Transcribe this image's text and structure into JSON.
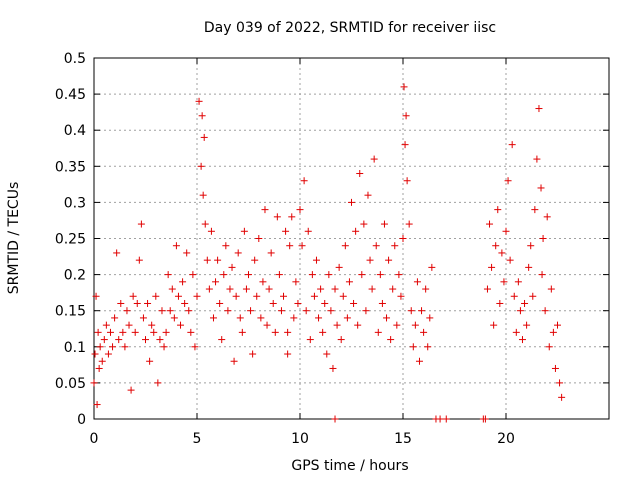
{
  "chart_data": {
    "type": "scatter",
    "title": "Day 039 of 2022, SRMTID for receiver iisc",
    "xlabel": "GPS time / hours",
    "ylabel": "SRMTID / TECUs",
    "xlim": [
      0,
      25
    ],
    "ylim": [
      0,
      0.5
    ],
    "x_ticks": [
      0,
      5,
      10,
      15,
      20
    ],
    "x_tick_labels": [
      "0",
      "5",
      "10",
      "15",
      "20"
    ],
    "y_ticks": [
      0,
      0.05,
      0.1,
      0.15,
      0.2,
      0.25,
      0.3,
      0.35,
      0.4,
      0.45,
      0.5
    ],
    "y_tick_labels": [
      "0",
      "0.05",
      "0.1",
      "0.15",
      "0.2",
      "0.25",
      "0.3",
      "0.35",
      "0.4",
      "0.45",
      "0.5"
    ],
    "grid": true,
    "marker": "+",
    "color": "#e00000",
    "series": [
      {
        "x": [
          0.0,
          0.05,
          0.1,
          0.15,
          0.2,
          0.25,
          0.3,
          0.4,
          0.5,
          0.6,
          0.7,
          0.8,
          0.9,
          1.0,
          1.1,
          1.2,
          1.3,
          1.4,
          1.5,
          1.6,
          1.7,
          1.8,
          1.9,
          2.0,
          2.1,
          2.2,
          2.3,
          2.4,
          2.5,
          2.6,
          2.7,
          2.8,
          2.9,
          3.0,
          3.1,
          3.2,
          3.3,
          3.4,
          3.5,
          3.6,
          3.7,
          3.8,
          3.9,
          4.0,
          4.1,
          4.2,
          4.3,
          4.4,
          4.5,
          4.6,
          4.7,
          4.8,
          4.9,
          5.0,
          5.1,
          5.2,
          5.25,
          5.3,
          5.35,
          5.4,
          5.5,
          5.6,
          5.7,
          5.8,
          5.9,
          6.0,
          6.1,
          6.2,
          6.3,
          6.4,
          6.5,
          6.6,
          6.7,
          6.8,
          6.9,
          7.0,
          7.1,
          7.2,
          7.3,
          7.4,
          7.5,
          7.6,
          7.7,
          7.8,
          7.9,
          8.0,
          8.1,
          8.2,
          8.3,
          8.4,
          8.5,
          8.6,
          8.7,
          8.8,
          8.9,
          9.0,
          9.1,
          9.2,
          9.3,
          9.4,
          9.5,
          9.6,
          9.7,
          9.8,
          9.9,
          10.0,
          10.1,
          10.2,
          10.3,
          10.4,
          10.5,
          10.6,
          10.7,
          10.8,
          10.9,
          11.0,
          11.1,
          11.2,
          11.3,
          11.4,
          11.5,
          11.6,
          11.7,
          11.8,
          11.9,
          12.0,
          12.1,
          12.2,
          12.3,
          12.4,
          12.5,
          12.6,
          12.7,
          12.8,
          12.9,
          13.0,
          13.1,
          13.2,
          13.3,
          13.4,
          13.5,
          13.6,
          13.7,
          13.8,
          13.9,
          14.0,
          14.1,
          14.2,
          14.3,
          14.4,
          14.5,
          14.6,
          14.7,
          14.8,
          14.9,
          15.0,
          15.05,
          15.1,
          15.15,
          15.2,
          15.3,
          15.4,
          15.5,
          15.6,
          15.7,
          15.8,
          15.9,
          16.0,
          16.1,
          16.2,
          16.3,
          16.4,
          9.4,
          11.7,
          16.6,
          16.8,
          17.1,
          18.9,
          19.0,
          19.1,
          19.2,
          19.3,
          19.4,
          19.5,
          19.6,
          19.7,
          19.8,
          19.9,
          20.0,
          20.1,
          20.2,
          20.3,
          20.4,
          20.5,
          20.6,
          20.7,
          20.8,
          20.9,
          21.0,
          21.1,
          21.2,
          21.3,
          21.4,
          21.5,
          21.6,
          21.7,
          21.75,
          21.8,
          21.9,
          22.0,
          22.1,
          22.2,
          22.3,
          22.4,
          22.5,
          22.6,
          22.7
        ],
        "y": [
          0.05,
          0.09,
          0.17,
          0.02,
          0.12,
          0.07,
          0.1,
          0.08,
          0.11,
          0.13,
          0.09,
          0.12,
          0.1,
          0.14,
          0.23,
          0.11,
          0.16,
          0.12,
          0.1,
          0.15,
          0.13,
          0.04,
          0.17,
          0.12,
          0.16,
          0.22,
          0.27,
          0.14,
          0.11,
          0.16,
          0.08,
          0.13,
          0.12,
          0.17,
          0.05,
          0.11,
          0.15,
          0.1,
          0.12,
          0.2,
          0.15,
          0.18,
          0.14,
          0.24,
          0.17,
          0.13,
          0.19,
          0.16,
          0.23,
          0.15,
          0.12,
          0.2,
          0.1,
          0.17,
          0.44,
          0.35,
          0.42,
          0.31,
          0.39,
          0.27,
          0.22,
          0.18,
          0.26,
          0.14,
          0.19,
          0.22,
          0.16,
          0.11,
          0.2,
          0.24,
          0.15,
          0.18,
          0.21,
          0.08,
          0.17,
          0.23,
          0.14,
          0.12,
          0.26,
          0.18,
          0.2,
          0.15,
          0.09,
          0.22,
          0.17,
          0.25,
          0.14,
          0.19,
          0.29,
          0.13,
          0.18,
          0.23,
          0.16,
          0.12,
          0.28,
          0.2,
          0.15,
          0.17,
          0.26,
          0.12,
          0.24,
          0.28,
          0.14,
          0.19,
          0.16,
          0.29,
          0.24,
          0.33,
          0.15,
          0.26,
          0.11,
          0.2,
          0.17,
          0.22,
          0.14,
          0.18,
          0.12,
          0.16,
          0.09,
          0.2,
          0.15,
          0.07,
          0.18,
          0.13,
          0.21,
          0.11,
          0.17,
          0.24,
          0.14,
          0.19,
          0.3,
          0.16,
          0.26,
          0.13,
          0.34,
          0.2,
          0.27,
          0.15,
          0.31,
          0.22,
          0.18,
          0.36,
          0.24,
          0.12,
          0.2,
          0.16,
          0.27,
          0.14,
          0.22,
          0.11,
          0.18,
          0.24,
          0.13,
          0.2,
          0.17,
          0.25,
          0.46,
          0.38,
          0.42,
          0.33,
          0.27,
          0.15,
          0.1,
          0.13,
          0.19,
          0.08,
          0.15,
          0.12,
          0.18,
          0.1,
          0.14,
          0.21,
          0.09,
          0.0,
          0.0,
          0.0,
          0.0,
          0.0,
          0.0,
          0.18,
          0.27,
          0.21,
          0.13,
          0.24,
          0.29,
          0.16,
          0.23,
          0.19,
          0.26,
          0.33,
          0.22,
          0.38,
          0.17,
          0.12,
          0.19,
          0.15,
          0.11,
          0.16,
          0.13,
          0.21,
          0.24,
          0.17,
          0.29,
          0.36,
          0.43,
          0.32,
          0.2,
          0.25,
          0.15,
          0.28,
          0.1,
          0.18,
          0.12,
          0.07,
          0.13,
          0.05,
          0.03
        ]
      }
    ]
  }
}
